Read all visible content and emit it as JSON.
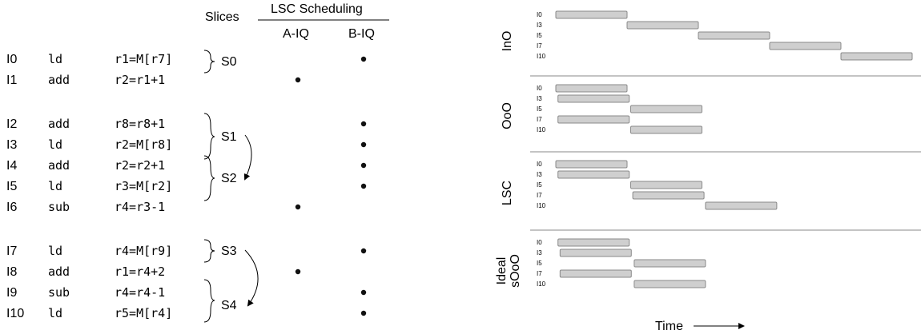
{
  "table": {
    "slices_header": "Slices",
    "lsc_header": "LSC Scheduling",
    "aiq_header": "A-IQ",
    "biq_header": "B-IQ",
    "instructions": [
      {
        "id": "I0",
        "op": "ld",
        "args": "r1=M[r7]",
        "queue": "B"
      },
      {
        "id": "I1",
        "op": "add",
        "args": "r2=r1+1",
        "queue": "A"
      },
      {
        "id": "I2",
        "op": "add",
        "args": "r8=r8+1",
        "queue": "B"
      },
      {
        "id": "I3",
        "op": "ld",
        "args": "r2=M[r8]",
        "queue": "B"
      },
      {
        "id": "I4",
        "op": "add",
        "args": "r2=r2+1",
        "queue": "B"
      },
      {
        "id": "I5",
        "op": "ld",
        "args": "r3=M[r2]",
        "queue": "B"
      },
      {
        "id": "I6",
        "op": "sub",
        "args": "r4=r3-1",
        "queue": "A"
      },
      {
        "id": "I7",
        "op": "ld",
        "args": "r4=M[r9]",
        "queue": "B"
      },
      {
        "id": "I8",
        "op": "add",
        "args": "r1=r4+2",
        "queue": "A"
      },
      {
        "id": "I9",
        "op": "sub",
        "args": "r4=r4-1",
        "queue": "B"
      },
      {
        "id": "I10",
        "op": "ld",
        "args": "r5=M[r4]",
        "queue": "B"
      }
    ],
    "slices": [
      "S0",
      "S1",
      "S2",
      "S3",
      "S4"
    ]
  },
  "timeline": {
    "time_label": "Time",
    "panels": [
      {
        "name": "InO",
        "rows": [
          {
            "label": "I0",
            "start": 0,
            "end": 1
          },
          {
            "label": "I3",
            "start": 1,
            "end": 2
          },
          {
            "label": "I5",
            "start": 2,
            "end": 3
          },
          {
            "label": "I7",
            "start": 3,
            "end": 4
          },
          {
            "label": "I10",
            "start": 4,
            "end": 5
          }
        ]
      },
      {
        "name": "OoO",
        "rows": [
          {
            "label": "I0",
            "start": 0,
            "end": 1
          },
          {
            "label": "I3",
            "start": 0.03,
            "end": 1.03
          },
          {
            "label": "I5",
            "start": 1.05,
            "end": 2.05
          },
          {
            "label": "I7",
            "start": 0.03,
            "end": 1.03
          },
          {
            "label": "I10",
            "start": 1.05,
            "end": 2.05
          }
        ]
      },
      {
        "name": "LSC",
        "rows": [
          {
            "label": "I0",
            "start": 0,
            "end": 1
          },
          {
            "label": "I3",
            "start": 0.03,
            "end": 1.03
          },
          {
            "label": "I5",
            "start": 1.05,
            "end": 2.05
          },
          {
            "label": "I7",
            "start": 1.08,
            "end": 2.08
          },
          {
            "label": "I10",
            "start": 2.1,
            "end": 3.1
          }
        ]
      },
      {
        "name": "Ideal sOoO",
        "rows": [
          {
            "label": "I0",
            "start": 0.03,
            "end": 1.03
          },
          {
            "label": "I3",
            "start": 0.06,
            "end": 1.06
          },
          {
            "label": "I5",
            "start": 1.1,
            "end": 2.1
          },
          {
            "label": "I7",
            "start": 0.06,
            "end": 1.06
          },
          {
            "label": "I10",
            "start": 1.1,
            "end": 2.1
          }
        ]
      }
    ]
  }
}
